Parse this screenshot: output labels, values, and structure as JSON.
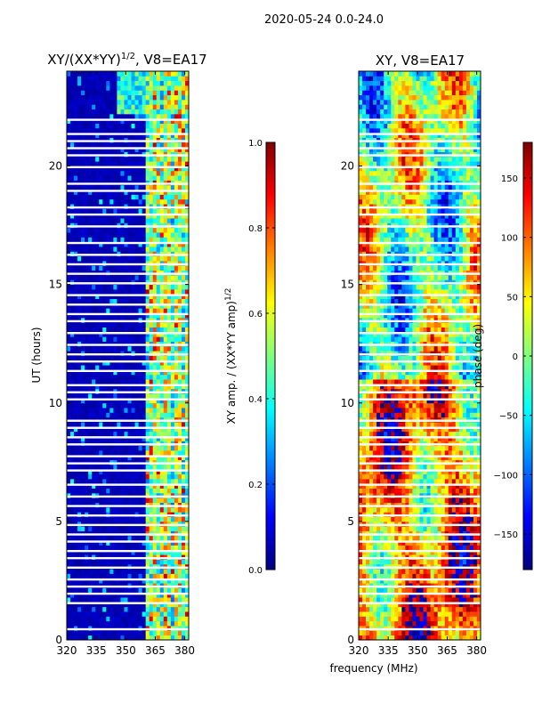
{
  "suptitle": "2020-05-24 0.0-24.0",
  "xlabel_shared": "frequency (MHz)",
  "colors": {
    "jet": [
      "#00007f",
      "#0000ff",
      "#007fff",
      "#00ffff",
      "#7fff7f",
      "#ffff00",
      "#ff7f00",
      "#ff0000",
      "#7f0000"
    ]
  },
  "chart_data": [
    {
      "type": "heatmap",
      "title_main": "XY/(XX*YY)",
      "title_sup": "1/2",
      "title_tail": ", V8=EA17",
      "xlabel": "",
      "ylabel": "UT (hours)",
      "xlim": [
        320,
        382
      ],
      "ylim": [
        0,
        24
      ],
      "xticks": [
        320,
        335,
        350,
        365,
        380
      ],
      "yticks": [
        0,
        5,
        10,
        15,
        20
      ],
      "colorbar": {
        "label_main": "XY amp. / (XX*YY amp)",
        "label_sup": "1/2",
        "range": [
          0.0,
          1.0
        ],
        "ticks": [
          "0.0",
          "0.2",
          "0.4",
          "0.6",
          "0.8",
          "1.0"
        ],
        "tick_values": [
          0.0,
          0.2,
          0.4,
          0.6,
          0.8,
          1.0
        ]
      },
      "bright_band_start_mhz": 360,
      "data_gap_hours": [
        0.45,
        1.55,
        1.95,
        2.25,
        2.55,
        3.05,
        3.45,
        3.75,
        4.15,
        4.45,
        4.85,
        5.25,
        5.65,
        6.05,
        6.55,
        7.15,
        7.45,
        7.75,
        8.25,
        8.55,
        8.95,
        9.25,
        10.15,
        10.45,
        10.75,
        11.35,
        11.75,
        12.05,
        12.45,
        12.95,
        13.45,
        13.75,
        14.15,
        14.55,
        15.05,
        15.45,
        15.85,
        16.25,
        16.75,
        17.45,
        17.95,
        18.25,
        18.95,
        19.25,
        19.95,
        20.45,
        20.75,
        21.05,
        21.35,
        21.95
      ]
    },
    {
      "type": "heatmap",
      "title_main": "XY, V8=EA17",
      "xlabel": "frequency (MHz)",
      "ylabel": "",
      "xlim": [
        320,
        382
      ],
      "ylim": [
        0,
        24
      ],
      "xticks": [
        320,
        335,
        350,
        365,
        380
      ],
      "yticks": [
        0,
        5,
        10,
        15,
        20
      ],
      "colorbar": {
        "label_main": "phase (deg)",
        "range": [
          -180,
          180
        ],
        "ticks": [
          "−150",
          "−100",
          "−50",
          "0",
          "50",
          "100",
          "150"
        ],
        "tick_values": [
          -150,
          -100,
          -50,
          0,
          50,
          100,
          150
        ]
      },
      "data_gap_hours": [
        0.45,
        1.55,
        1.95,
        2.25,
        2.55,
        3.05,
        3.45,
        3.75,
        4.15,
        4.45,
        4.85,
        5.25,
        5.65,
        6.05,
        6.55,
        7.15,
        7.45,
        7.75,
        8.25,
        8.55,
        8.95,
        9.25,
        10.15,
        10.45,
        10.75,
        11.35,
        11.75,
        12.05,
        12.45,
        12.95,
        13.45,
        13.75,
        14.15,
        14.55,
        15.05,
        15.45,
        15.85,
        16.25,
        16.75,
        17.45,
        17.95,
        18.25,
        18.95,
        19.25,
        19.95,
        20.45,
        20.75,
        21.05,
        21.35,
        21.95
      ]
    }
  ]
}
